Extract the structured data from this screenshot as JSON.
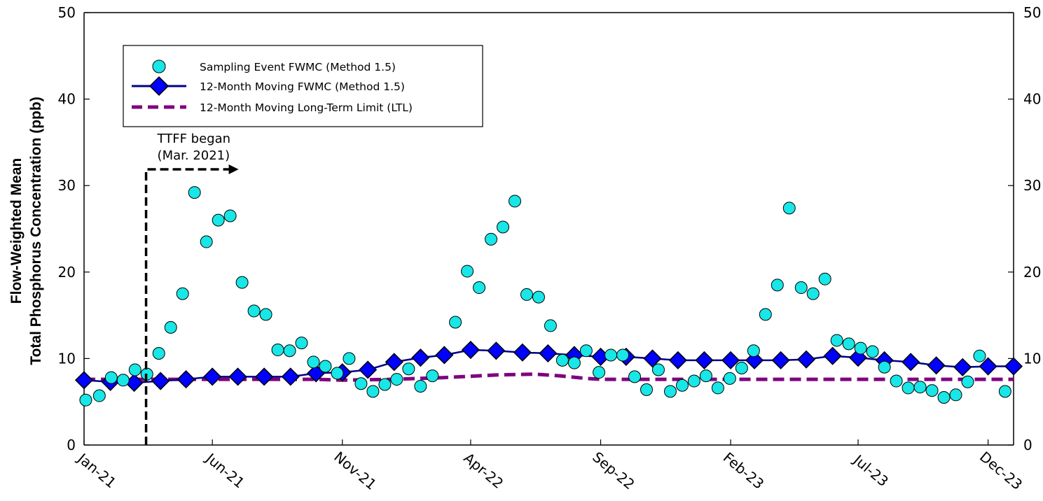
{
  "chart_data": {
    "type": "line",
    "title": "",
    "ylabel_line1": "Flow-Weighted Mean",
    "ylabel_line2": "Total Phosphorus Concentration (ppb)",
    "ylim": [
      0,
      50
    ],
    "yticks": [
      "0",
      "10",
      "20",
      "30",
      "40",
      "50"
    ],
    "xlim": [
      "2021-01-01",
      "2023-12-31"
    ],
    "xtick_labels": [
      "Jan-21",
      "Jun-21",
      "Nov-21",
      "Apr-22",
      "Sep-22",
      "Feb-23",
      "Jul-23",
      "Dec-23"
    ],
    "xtick_dates": [
      "2021-01-01",
      "2021-06-01",
      "2021-11-01",
      "2022-04-01",
      "2022-09-01",
      "2023-02-01",
      "2023-07-01",
      "2023-12-01"
    ],
    "grid": false,
    "legend_position": "top-left",
    "series": [
      {
        "name": "Sampling Event FWMC (Method 1.5)",
        "kind": "scatter",
        "color": "#19E6E6",
        "points": [
          [
            "2021-01-03",
            5.2
          ],
          [
            "2021-01-19",
            5.7
          ],
          [
            "2021-02-02",
            7.8
          ],
          [
            "2021-02-16",
            7.5
          ],
          [
            "2021-03-02",
            8.7
          ],
          [
            "2021-03-16",
            8.2
          ],
          [
            "2021-03-30",
            10.6
          ],
          [
            "2021-04-13",
            13.6
          ],
          [
            "2021-04-27",
            17.5
          ],
          [
            "2021-05-11",
            29.2
          ],
          [
            "2021-05-25",
            23.5
          ],
          [
            "2021-06-08",
            26.0
          ],
          [
            "2021-06-22",
            26.5
          ],
          [
            "2021-07-06",
            18.8
          ],
          [
            "2021-07-20",
            15.5
          ],
          [
            "2021-08-03",
            15.1
          ],
          [
            "2021-08-17",
            11.0
          ],
          [
            "2021-08-31",
            10.9
          ],
          [
            "2021-09-14",
            11.8
          ],
          [
            "2021-09-28",
            9.6
          ],
          [
            "2021-10-12",
            9.1
          ],
          [
            "2021-10-26",
            8.3
          ],
          [
            "2021-11-09",
            10.0
          ],
          [
            "2021-11-23",
            7.1
          ],
          [
            "2021-12-07",
            6.2
          ],
          [
            "2021-12-21",
            7.0
          ],
          [
            "2022-01-04",
            7.6
          ],
          [
            "2022-01-18",
            8.8
          ],
          [
            "2022-02-01",
            6.8
          ],
          [
            "2022-02-15",
            8.0
          ],
          [
            "2022-03-14",
            14.2
          ],
          [
            "2022-03-28",
            20.1
          ],
          [
            "2022-04-11",
            18.2
          ],
          [
            "2022-04-25",
            23.8
          ],
          [
            "2022-05-09",
            25.2
          ],
          [
            "2022-05-23",
            28.2
          ],
          [
            "2022-06-06",
            17.4
          ],
          [
            "2022-06-20",
            17.1
          ],
          [
            "2022-07-04",
            13.8
          ],
          [
            "2022-07-18",
            9.8
          ],
          [
            "2022-08-01",
            9.5
          ],
          [
            "2022-08-15",
            10.9
          ],
          [
            "2022-08-30",
            8.4
          ],
          [
            "2022-09-13",
            10.4
          ],
          [
            "2022-09-27",
            10.4
          ],
          [
            "2022-10-11",
            7.9
          ],
          [
            "2022-10-25",
            6.4
          ],
          [
            "2022-11-08",
            8.7
          ],
          [
            "2022-11-22",
            6.2
          ],
          [
            "2022-12-06",
            6.9
          ],
          [
            "2022-12-20",
            7.4
          ],
          [
            "2023-01-03",
            8.0
          ],
          [
            "2023-01-17",
            6.6
          ],
          [
            "2023-01-31",
            7.7
          ],
          [
            "2023-02-14",
            8.9
          ],
          [
            "2023-02-28",
            10.9
          ],
          [
            "2023-03-14",
            15.1
          ],
          [
            "2023-03-28",
            18.5
          ],
          [
            "2023-04-11",
            27.4
          ],
          [
            "2023-04-25",
            18.2
          ],
          [
            "2023-05-09",
            17.5
          ],
          [
            "2023-05-23",
            19.2
          ],
          [
            "2023-06-06",
            12.1
          ],
          [
            "2023-06-20",
            11.7
          ],
          [
            "2023-07-04",
            11.2
          ],
          [
            "2023-07-18",
            10.8
          ],
          [
            "2023-08-01",
            9.0
          ],
          [
            "2023-08-15",
            7.4
          ],
          [
            "2023-08-29",
            6.6
          ],
          [
            "2023-09-12",
            6.7
          ],
          [
            "2023-09-26",
            6.3
          ],
          [
            "2023-10-10",
            5.5
          ],
          [
            "2023-10-24",
            5.8
          ],
          [
            "2023-11-07",
            7.3
          ],
          [
            "2023-11-21",
            10.3
          ],
          [
            "2023-12-21",
            6.2
          ]
        ]
      },
      {
        "name": "12-Month Moving FWMC (Method 1.5)",
        "kind": "line-marker",
        "color": "#0000FF",
        "line_color": "#00008B",
        "points": [
          [
            "2021-01-01",
            7.5
          ],
          [
            "2021-02-01",
            7.3
          ],
          [
            "2021-03-01",
            7.2
          ],
          [
            "2021-04-01",
            7.4
          ],
          [
            "2021-05-01",
            7.6
          ],
          [
            "2021-06-01",
            7.9
          ],
          [
            "2021-07-01",
            7.9
          ],
          [
            "2021-08-01",
            7.9
          ],
          [
            "2021-09-01",
            7.9
          ],
          [
            "2021-10-01",
            8.3
          ],
          [
            "2021-11-01",
            8.4
          ],
          [
            "2021-12-01",
            8.7
          ],
          [
            "2022-01-01",
            9.6
          ],
          [
            "2022-02-01",
            10.1
          ],
          [
            "2022-03-01",
            10.4
          ],
          [
            "2022-04-01",
            11.0
          ],
          [
            "2022-05-01",
            10.9
          ],
          [
            "2022-06-01",
            10.7
          ],
          [
            "2022-07-01",
            10.6
          ],
          [
            "2022-08-01",
            10.4
          ],
          [
            "2022-09-01",
            10.2
          ],
          [
            "2022-10-01",
            10.2
          ],
          [
            "2022-11-01",
            10.0
          ],
          [
            "2022-12-01",
            9.8
          ],
          [
            "2023-01-01",
            9.8
          ],
          [
            "2023-02-01",
            9.8
          ],
          [
            "2023-03-01",
            9.8
          ],
          [
            "2023-04-01",
            9.8
          ],
          [
            "2023-05-01",
            9.9
          ],
          [
            "2023-06-01",
            10.3
          ],
          [
            "2023-07-01",
            10.1
          ],
          [
            "2023-08-01",
            9.8
          ],
          [
            "2023-09-01",
            9.6
          ],
          [
            "2023-10-01",
            9.2
          ],
          [
            "2023-11-01",
            9.0
          ],
          [
            "2023-12-01",
            9.1
          ],
          [
            "2023-12-31",
            9.1
          ]
        ]
      },
      {
        "name": "12-Month Moving Long-Term Limit (LTL)",
        "kind": "dashed-line",
        "color": "#7F007F",
        "points": [
          [
            "2021-01-01",
            7.6
          ],
          [
            "2021-10-01",
            7.6
          ],
          [
            "2021-11-01",
            7.5
          ],
          [
            "2022-01-01",
            7.6
          ],
          [
            "2022-03-01",
            7.8
          ],
          [
            "2022-05-01",
            8.1
          ],
          [
            "2022-06-15",
            8.2
          ],
          [
            "2022-07-15",
            8.0
          ],
          [
            "2022-08-15",
            7.7
          ],
          [
            "2022-09-01",
            7.6
          ],
          [
            "2023-12-31",
            7.6
          ]
        ]
      }
    ],
    "annotations": [
      {
        "text_line1": "TTFF began",
        "text_line2": "(Mar. 2021)",
        "date": "2021-03-15"
      }
    ]
  }
}
